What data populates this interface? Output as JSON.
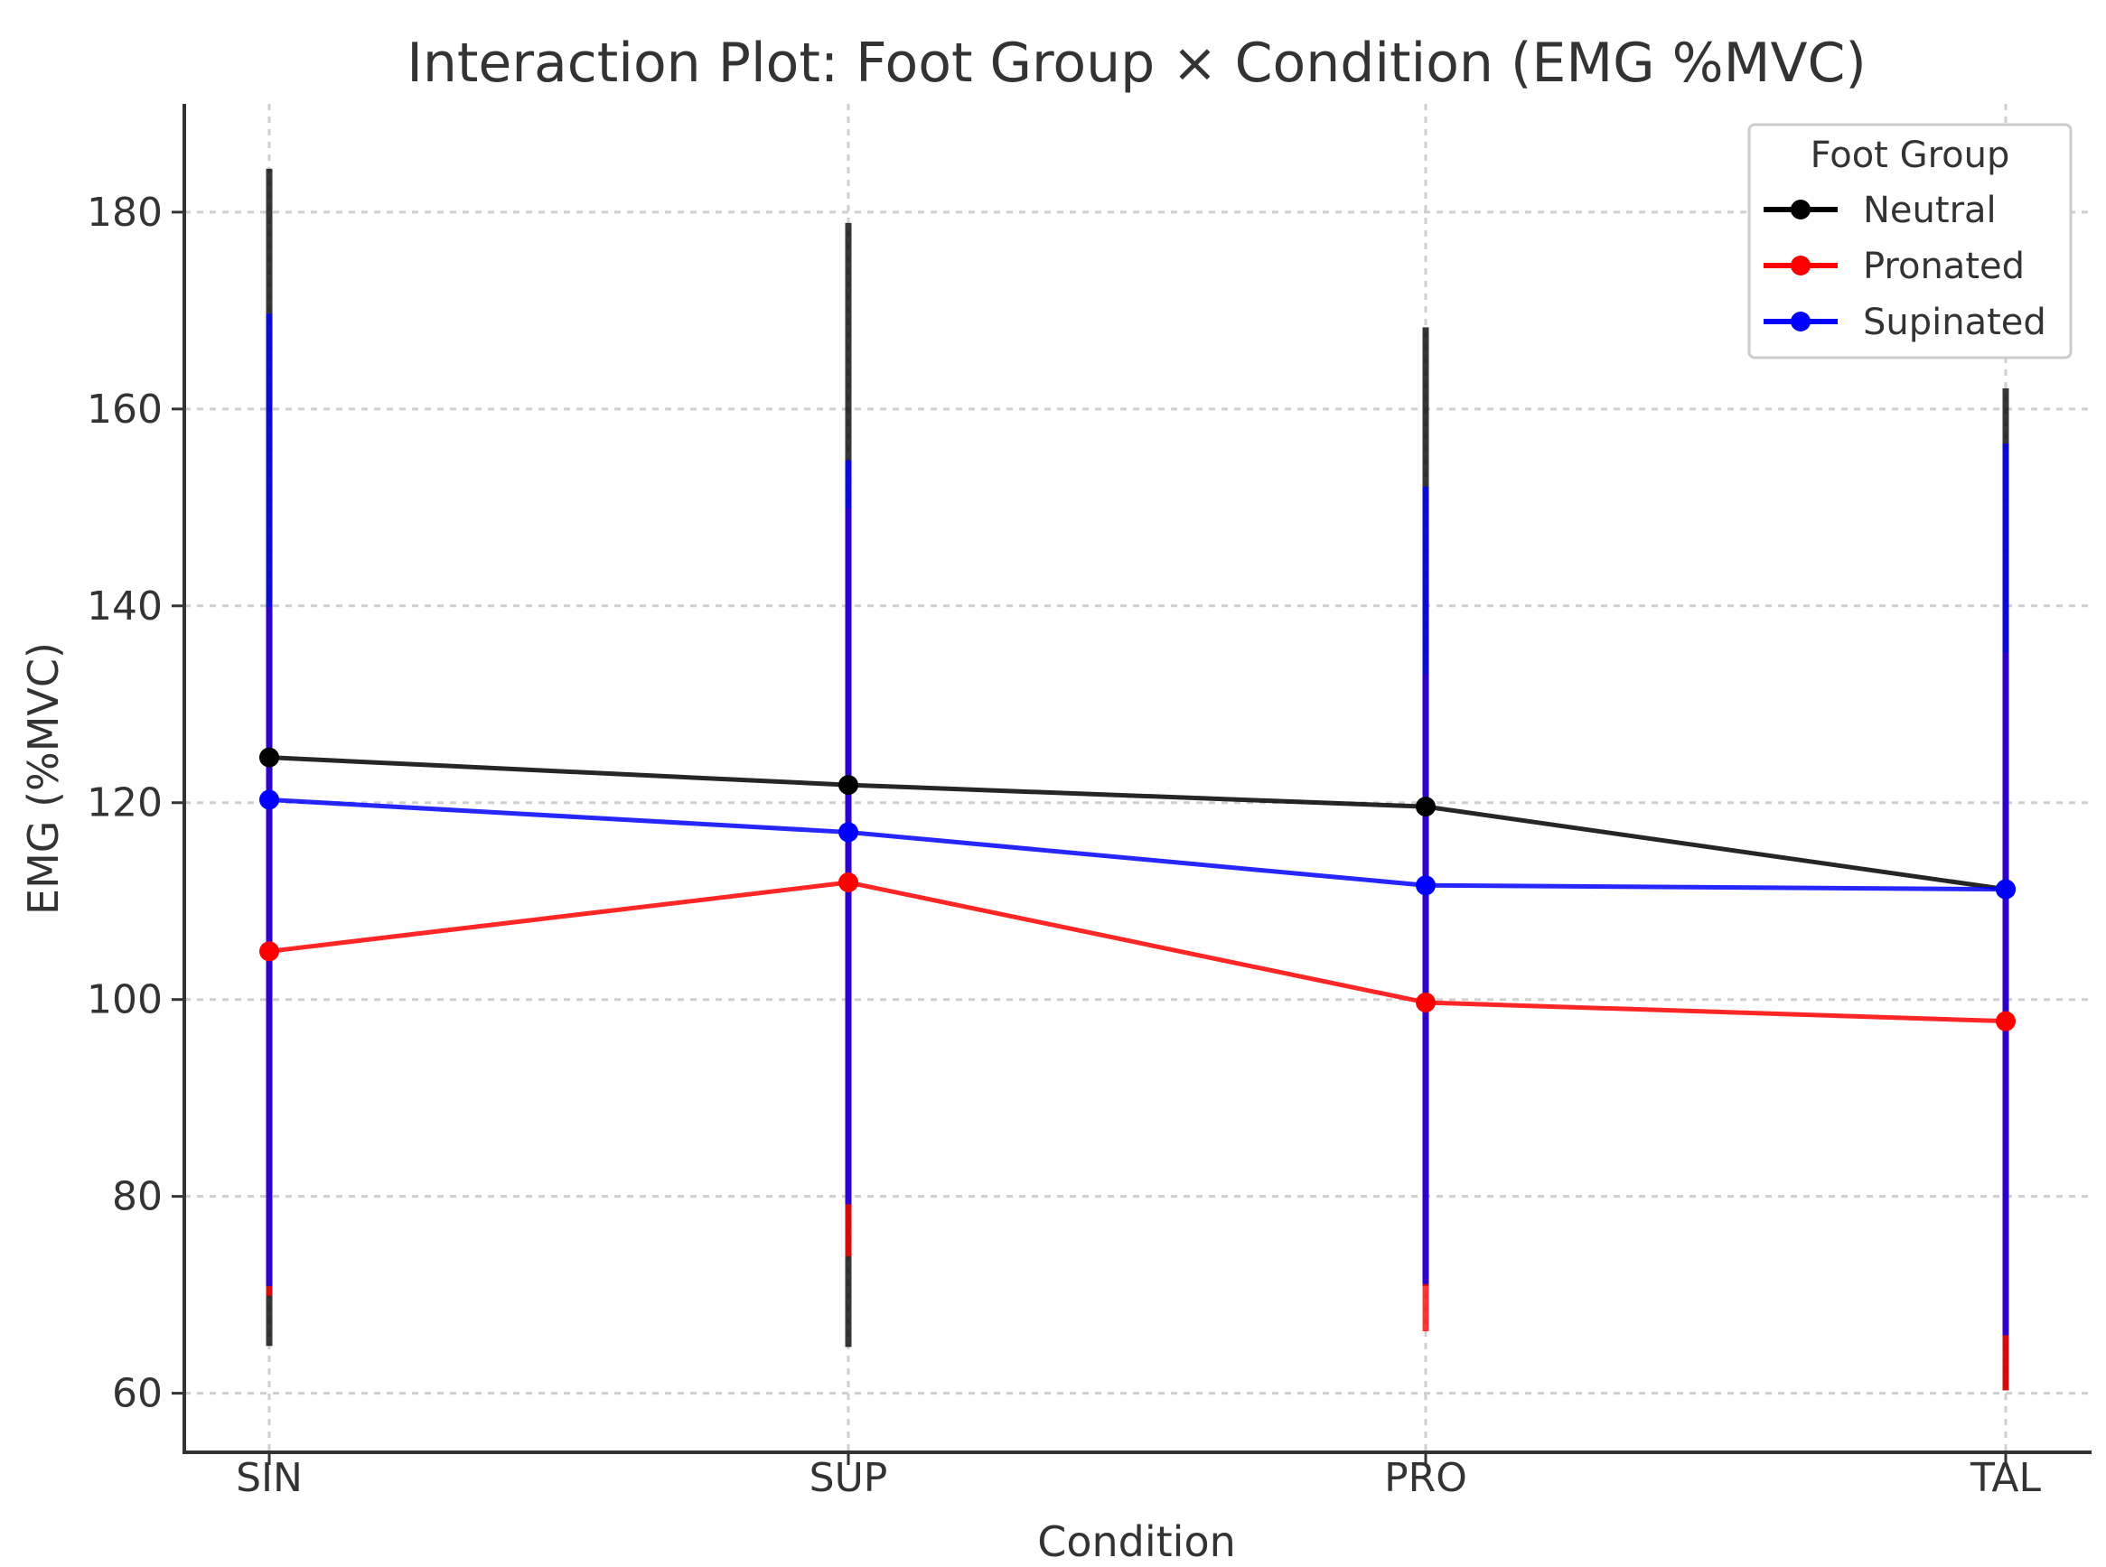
{
  "chart_data": {
    "type": "line",
    "title": "Interaction Plot: Foot Group × Condition (EMG %MVC)",
    "xlabel": "Condition",
    "ylabel": "EMG (%MVC)",
    "categories": [
      "SIN",
      "SUP",
      "PRO",
      "TAL"
    ],
    "ylim": [
      54,
      191
    ],
    "yticks": [
      60,
      80,
      100,
      120,
      140,
      160,
      180
    ],
    "grid": true,
    "legend": {
      "title": "Foot Group",
      "placement": "top-right"
    },
    "series": [
      {
        "name": "Neutral",
        "color": "#000000",
        "values": [
          124.6,
          121.8,
          119.6,
          111.2
        ],
        "error_low": [
          64.8,
          64.7,
          70.9,
          60.3
        ],
        "error_high": [
          184.4,
          178.9,
          168.3,
          162.1
        ]
      },
      {
        "name": "Pronated",
        "color": "#ff0000",
        "values": [
          104.9,
          111.9,
          99.7,
          97.8
        ],
        "error_low": [
          69.9,
          73.9,
          66.3,
          60.3
        ],
        "error_high": [
          139.9,
          149.9,
          133.1,
          135.3
        ]
      },
      {
        "name": "Supinated",
        "color": "#0000ff",
        "values": [
          120.3,
          117.0,
          111.6,
          111.2
        ],
        "error_low": [
          70.9,
          79.2,
          71.1,
          65.9
        ],
        "error_high": [
          169.7,
          154.8,
          152.1,
          156.5
        ]
      }
    ]
  }
}
